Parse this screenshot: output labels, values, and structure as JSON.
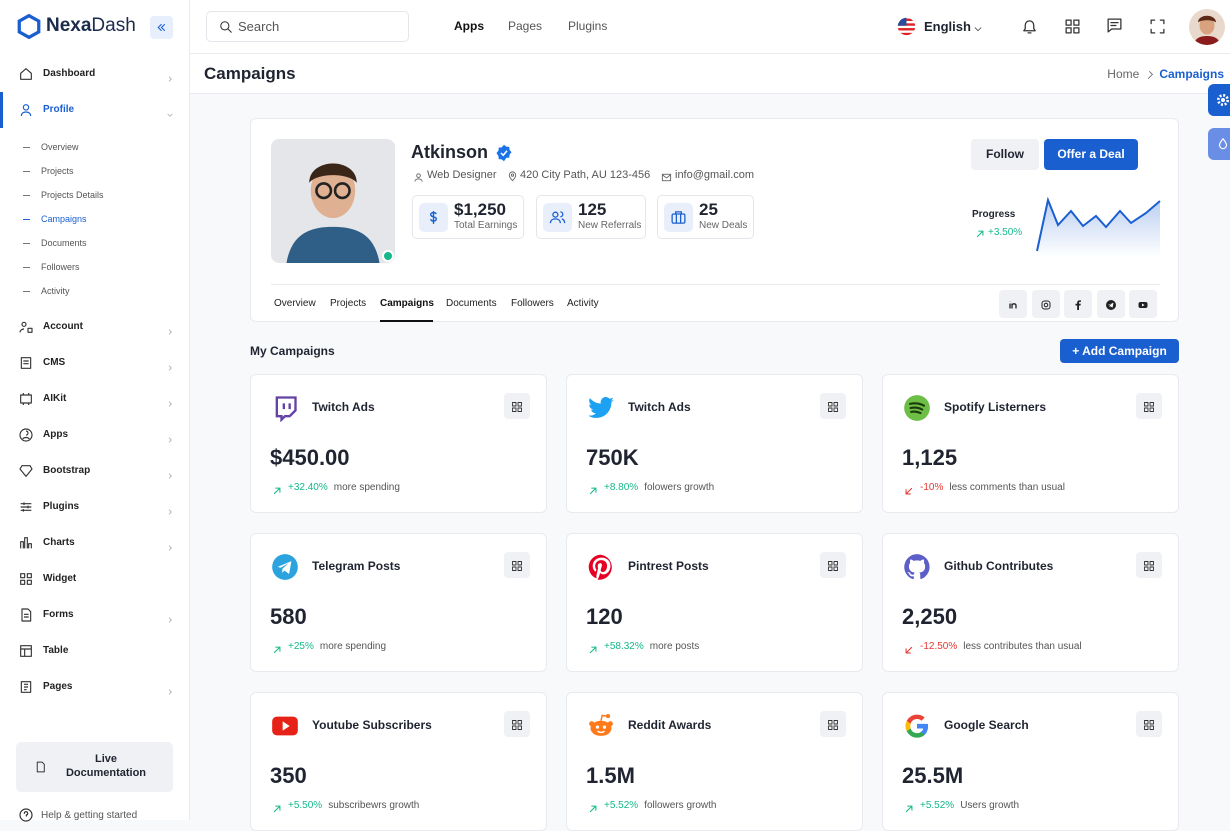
{
  "brand": {
    "bold": "Nexa",
    "light": "Dash"
  },
  "topbar": {
    "search": "Search",
    "nav": [
      "Apps",
      "Pages",
      "Plugins"
    ],
    "language": "English"
  },
  "sidebar": {
    "items": [
      {
        "label": "Dashboard",
        "expandable": true
      },
      {
        "label": "Profile",
        "expandable": true,
        "open": true,
        "children": [
          "Overview",
          "Projects",
          "Projects Details",
          "Campaigns",
          "Documents",
          "Followers",
          "Activity"
        ],
        "active_child": 3
      },
      {
        "label": "Account",
        "expandable": true
      },
      {
        "label": "CMS",
        "expandable": true
      },
      {
        "label": "AIKit",
        "expandable": true
      },
      {
        "label": "Apps",
        "expandable": true
      },
      {
        "label": "Bootstrap",
        "expandable": true
      },
      {
        "label": "Plugins",
        "expandable": true
      },
      {
        "label": "Charts",
        "expandable": true
      },
      {
        "label": "Widget",
        "expandable": false
      },
      {
        "label": "Forms",
        "expandable": true
      },
      {
        "label": "Table",
        "expandable": false
      },
      {
        "label": "Pages",
        "expandable": true
      }
    ],
    "doc": "Live Documentation",
    "help": "Help & getting started"
  },
  "page": {
    "title": "Campaigns",
    "breadcrumb": [
      "Home",
      "Campaigns"
    ]
  },
  "profile": {
    "name": "Atkinson",
    "role": "Web Designer",
    "location": "420 City Path, AU 123-456",
    "email": "info@gmail.com",
    "stats": [
      {
        "value": "$1,250",
        "label": "Total Earnings"
      },
      {
        "value": "125",
        "label": "New Referrals"
      },
      {
        "value": "25",
        "label": "New Deals"
      }
    ],
    "buttons": [
      "Follow",
      "Offer a Deal"
    ],
    "progress": {
      "label": "Progress",
      "change": "+3.50%"
    },
    "tabs": [
      "Overview",
      "Projects",
      "Campaigns",
      "Documents",
      "Followers",
      "Activity"
    ],
    "active_tab": 2
  },
  "campaigns": {
    "title": "My Campaigns",
    "add": "+ Add Campaign",
    "cards": [
      {
        "name": "Twitch Ads",
        "value": "$450.00",
        "change": "+32.40%",
        "note": "more spending",
        "trend": "up"
      },
      {
        "name": "Twitch Ads",
        "value": "750K",
        "change": "+8.80%",
        "note": "folowers growth",
        "trend": "up"
      },
      {
        "name": "Spotify Listerners",
        "value": "1,125",
        "change": "-10%",
        "note": "less comments than usual",
        "trend": "down"
      },
      {
        "name": "Telegram Posts",
        "value": "580",
        "change": "+25%",
        "note": "more spending",
        "trend": "up"
      },
      {
        "name": "Pintrest Posts",
        "value": "120",
        "change": "+58.32%",
        "note": "more posts",
        "trend": "up"
      },
      {
        "name": "Github Contributes",
        "value": "2,250",
        "change": "-12.50%",
        "note": "less contributes than usual",
        "trend": "down"
      },
      {
        "name": "Youtube Subscribers",
        "value": "350",
        "change": "+5.50%",
        "note": "subscribewrs growth",
        "trend": "up"
      },
      {
        "name": "Reddit Awards",
        "value": "1.5M",
        "change": "+5.52%",
        "note": "followers growth",
        "trend": "up"
      },
      {
        "name": "Google Search",
        "value": "25.5M",
        "change": "+5.52%",
        "note": "Users growth",
        "trend": "up"
      }
    ]
  }
}
